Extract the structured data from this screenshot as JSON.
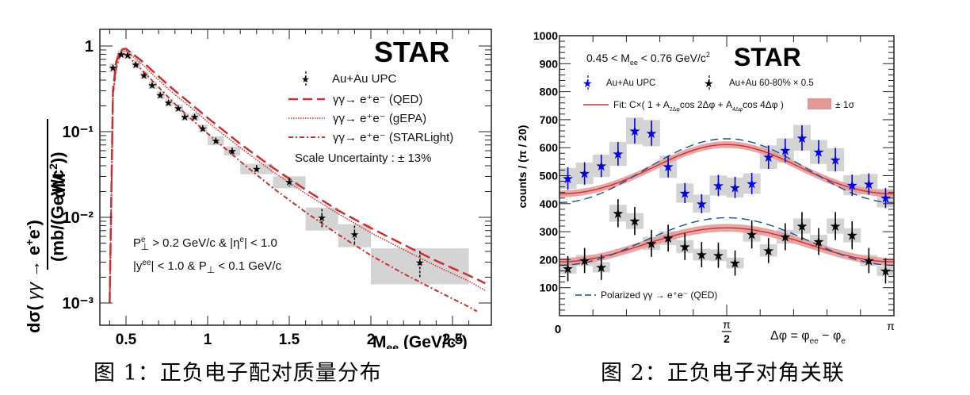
{
  "captions": {
    "fig1": "图 1：正负电子配对质量分布",
    "fig2": "图 2：正负电子对角关联"
  },
  "colors": {
    "model_red": "#c8312f",
    "band_red": "#e39898",
    "data_blue": "#0000e0",
    "qed_blue": "#1f4e8c",
    "syst_gray": "#d4d4d4",
    "star_black": "#000000"
  },
  "chart_data": [
    {
      "type": "scatter",
      "title": "STAR",
      "xlabel": "M_ee (GeV/c²)",
      "ylabel": "dσ(γγ → e⁺e⁻)/dM (mb/(GeV/c²))",
      "xlim": [
        0.35,
        2.7
      ],
      "ylim": [
        0.001,
        1.5
      ],
      "yscale": "log",
      "x_ticks": [
        0.5,
        1,
        1.5,
        2,
        2.5
      ],
      "x_tick_labels": [
        "0.5",
        "1",
        "1.5",
        "2",
        "2.5"
      ],
      "y_ticks": [
        1,
        0.1,
        0.01,
        0.001
      ],
      "y_tick_labels": [
        "1",
        "10⁻¹",
        "10⁻²",
        "10⁻³"
      ],
      "legend_position": "top-right",
      "legend": [
        {
          "label": "Au+Au UPC",
          "style": "star-marker"
        },
        {
          "label": "γγ→ e⁺e⁻ (QED)",
          "style": "long-dash"
        },
        {
          "label": "γγ→ e⁺e⁻ (gEPA)",
          "style": "dotted"
        },
        {
          "label": "γγ→ e⁺e⁻ (STARLight)",
          "style": "dash-dot"
        }
      ],
      "annotations": {
        "experiment": "STAR",
        "scale_uncertainty": "Scale Uncertainty : ± 13%",
        "cut1": "P⊥ᵉ > 0.2 GeV/c & |ηᵉ| < 1.0",
        "cut2": "|yᵉᵉ| < 1.0 & P⊥ < 0.1 GeV/c"
      },
      "series": [
        {
          "name": "Au+Au UPC",
          "x": [
            0.42,
            0.47,
            0.51,
            0.56,
            0.61,
            0.66,
            0.71,
            0.76,
            0.82,
            0.86,
            0.92,
            0.97,
            1.05,
            1.15,
            1.3,
            1.5,
            1.7,
            1.9,
            2.3
          ],
          "y": [
            0.56,
            0.81,
            0.79,
            0.61,
            0.46,
            0.35,
            0.27,
            0.22,
            0.19,
            0.15,
            0.15,
            0.11,
            0.079,
            0.06,
            0.037,
            0.026,
            0.01,
            0.0064,
            0.003
          ],
          "x_bin_halfwidth": [
            0.02,
            0.02,
            0.02,
            0.02,
            0.02,
            0.02,
            0.02,
            0.02,
            0.02,
            0.02,
            0.02,
            0.02,
            0.05,
            0.05,
            0.1,
            0.1,
            0.1,
            0.1,
            0.3
          ],
          "y_err_rel": [
            0.05,
            0.04,
            0.04,
            0.04,
            0.04,
            0.05,
            0.05,
            0.05,
            0.05,
            0.06,
            0.06,
            0.07,
            0.07,
            0.08,
            0.1,
            0.12,
            0.25,
            0.25,
            0.35
          ],
          "syst_rel": [
            0.12,
            0.1,
            0.1,
            0.1,
            0.1,
            0.1,
            0.1,
            0.1,
            0.1,
            0.1,
            0.1,
            0.1,
            0.12,
            0.12,
            0.14,
            0.16,
            0.3,
            0.3,
            0.45
          ]
        },
        {
          "name": "γγ→ e⁺e⁻ (QED)",
          "x": [
            0.4,
            0.42,
            0.44,
            0.46,
            0.48,
            0.5,
            0.6,
            0.7,
            0.8,
            0.9,
            1.0,
            1.2,
            1.4,
            1.6,
            1.8,
            2.0,
            2.2,
            2.4,
            2.6,
            2.7
          ],
          "y": [
            0.001,
            0.3,
            0.65,
            0.85,
            0.92,
            0.93,
            0.66,
            0.44,
            0.3,
            0.21,
            0.145,
            0.072,
            0.038,
            0.021,
            0.012,
            0.0075,
            0.0048,
            0.0031,
            0.0021,
            0.0017
          ]
        },
        {
          "name": "γγ→ e⁺e⁻ (gEPA)",
          "x": [
            0.4,
            0.42,
            0.44,
            0.46,
            0.48,
            0.5,
            0.6,
            0.7,
            0.8,
            0.9,
            1.0,
            1.2,
            1.4,
            1.6,
            1.8,
            2.0,
            2.2,
            2.4,
            2.6,
            2.7
          ],
          "y": [
            0.001,
            0.28,
            0.6,
            0.8,
            0.87,
            0.88,
            0.61,
            0.4,
            0.27,
            0.19,
            0.13,
            0.065,
            0.034,
            0.019,
            0.011,
            0.0066,
            0.0042,
            0.0027,
            0.0018,
            0.0014
          ]
        },
        {
          "name": "γγ→ e⁺e⁻ (STARLight)",
          "x": [
            0.4,
            0.42,
            0.44,
            0.46,
            0.48,
            0.5,
            0.6,
            0.7,
            0.8,
            0.9,
            1.0,
            1.2,
            1.4,
            1.6,
            1.8,
            2.0,
            2.2,
            2.4,
            2.6,
            2.65
          ],
          "y": [
            0.001,
            0.26,
            0.55,
            0.74,
            0.8,
            0.8,
            0.52,
            0.33,
            0.21,
            0.14,
            0.095,
            0.045,
            0.022,
            0.0115,
            0.0063,
            0.0036,
            0.0022,
            0.0014,
            0.0009,
            0.0008
          ]
        }
      ]
    },
    {
      "type": "scatter",
      "title": "STAR",
      "xlabel": "Δφ = φee − φe",
      "ylabel": "counts / (π / 20)",
      "xlim": [
        0,
        3.14159
      ],
      "ylim": [
        0,
        1000
      ],
      "x_tick_labels": [
        "0",
        "π/2",
        "π"
      ],
      "y_ticks": [
        100,
        200,
        300,
        400,
        500,
        600,
        700,
        800,
        900,
        1000
      ],
      "y_tick_labels": [
        "100",
        "200",
        "300",
        "400",
        "500",
        "600",
        "700",
        "800",
        "900",
        "1000"
      ],
      "legend_position": "top",
      "legend": [
        {
          "label": "Au+Au UPC",
          "style": "blue-star"
        },
        {
          "label": "Au+Au 60-80% × 0.5",
          "style": "black-star"
        },
        {
          "label": "Fit: C×( 1 + A2Δφ cos 2Δφ + A4Δφ cos 4Δφ )",
          "style": "red-line"
        },
        {
          "label": "± 1σ",
          "style": "red-band"
        },
        {
          "label": "Polarized γγ → e⁺e⁻ (QED)",
          "style": "blue-dash"
        }
      ],
      "annotations": {
        "experiment": "STAR",
        "mass_range": "0.45 < Mee < 0.76 GeV/c²"
      },
      "series": [
        {
          "name": "Au+Au UPC",
          "x_bins": 20,
          "y": [
            490,
            508,
            535,
            578,
            660,
            652,
            532,
            438,
            400,
            465,
            458,
            472,
            566,
            590,
            635,
            585,
            557,
            466,
            470,
            420
          ],
          "y_err": [
            40,
            40,
            40,
            42,
            45,
            45,
            38,
            36,
            34,
            38,
            38,
            38,
            42,
            42,
            45,
            42,
            42,
            38,
            38,
            36
          ]
        },
        {
          "name": "Au+Au 60-80% × 0.5",
          "x_bins": 20,
          "y": [
            168,
            197,
            173,
            366,
            338,
            258,
            277,
            247,
            218,
            216,
            188,
            290,
            233,
            282,
            320,
            265,
            320,
            287,
            197,
            160
          ],
          "y_err": [
            45,
            45,
            45,
            50,
            50,
            48,
            48,
            48,
            45,
            45,
            45,
            50,
            45,
            48,
            50,
            48,
            50,
            50,
            45,
            45
          ]
        },
        {
          "name": "Fit UPC",
          "C": 518,
          "A2": -0.17,
          "A4": 0.01,
          "band": 12
        },
        {
          "name": "Fit 60-80%",
          "C": 253,
          "A2": -0.24,
          "A4": 0.0,
          "band": 14
        },
        {
          "name": "Polarized QED UPC",
          "C": 518,
          "A2": -0.22,
          "A4": 0.0
        },
        {
          "name": "Polarized QED 60-80%",
          "C": 265,
          "A2": -0.32,
          "A4": 0.0
        }
      ]
    }
  ]
}
